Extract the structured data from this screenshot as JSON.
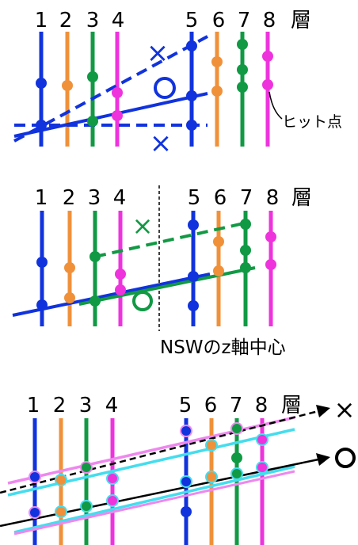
{
  "colors": {
    "layer": [
      "#1133dd",
      "#f0913a",
      "#119944",
      "#ee33dd",
      "#1133dd",
      "#f0913a",
      "#119944",
      "#ee33dd"
    ],
    "blue": "#1133dd",
    "green": "#119944",
    "cyan": "#44ddee",
    "pink": "#ee88ee",
    "black": "#000000"
  },
  "panels": [
    {
      "layer_labels": [
        "1",
        "2",
        "3",
        "4",
        "5",
        "6",
        "7",
        "8"
      ],
      "layer_word": "層",
      "hit_point_label": "ヒット点",
      "reject_mark": "×",
      "accept_mark": "○"
    },
    {
      "layer_labels": [
        "1",
        "2",
        "3",
        "4",
        "5",
        "6",
        "7",
        "8"
      ],
      "layer_word": "層",
      "center_label": "NSWのz軸中心",
      "reject_mark": "×",
      "accept_mark": "○"
    },
    {
      "layer_labels": [
        "1",
        "2",
        "3",
        "4",
        "5",
        "6",
        "7",
        "8"
      ],
      "layer_word": "層",
      "reject_mark": "×",
      "accept_mark": "○"
    }
  ]
}
